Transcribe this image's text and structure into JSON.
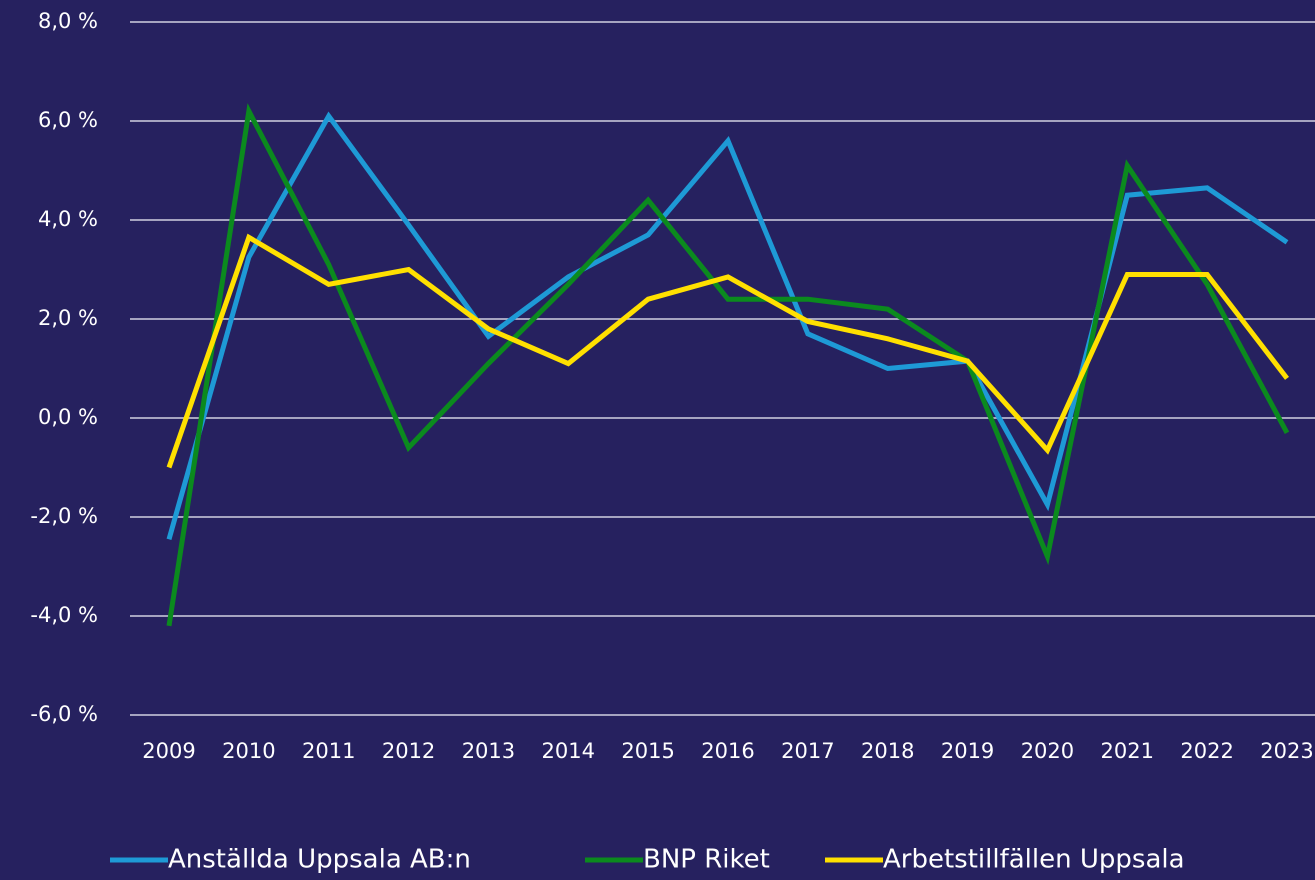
{
  "chart_data": {
    "type": "line",
    "categories": [
      "2009",
      "2010",
      "2011",
      "2012",
      "2013",
      "2014",
      "2015",
      "2016",
      "2017",
      "2018",
      "2019",
      "2020",
      "2021",
      "2022",
      "2023"
    ],
    "series": [
      {
        "name": "Anställda Uppsala AB:n",
        "color": "#1e9ad6",
        "values": [
          -2.45,
          3.25,
          6.1,
          3.9,
          1.65,
          2.85,
          3.7,
          5.6,
          1.7,
          1.0,
          1.15,
          -1.75,
          4.5,
          4.65,
          3.55
        ]
      },
      {
        "name": "BNP Riket",
        "color": "#0b8a1e",
        "values": [
          -4.2,
          6.2,
          3.1,
          -0.6,
          1.1,
          2.7,
          4.4,
          2.4,
          2.4,
          2.2,
          1.15,
          -2.8,
          5.1,
          2.7,
          -0.3
        ]
      },
      {
        "name": "Arbetstillfällen Uppsala",
        "color": "#ffe000",
        "values": [
          -1.0,
          3.65,
          2.7,
          3.0,
          1.8,
          1.1,
          2.4,
          2.85,
          1.95,
          1.6,
          1.15,
          -0.65,
          2.9,
          2.9,
          0.8
        ]
      }
    ],
    "ylim": [
      -6,
      8
    ],
    "yticks": [
      {
        "value": -6,
        "label": "-6,0 %"
      },
      {
        "value": -4,
        "label": "-4,0 %"
      },
      {
        "value": -2,
        "label": "-2,0 %"
      },
      {
        "value": 0,
        "label": "0,0 %"
      },
      {
        "value": 2,
        "label": "2,0 %"
      },
      {
        "value": 4,
        "label": "4,0 %"
      },
      {
        "value": 6,
        "label": "6,0 %"
      },
      {
        "value": 8,
        "label": "8,0 %"
      }
    ],
    "grid": true,
    "legend": "bottom"
  }
}
